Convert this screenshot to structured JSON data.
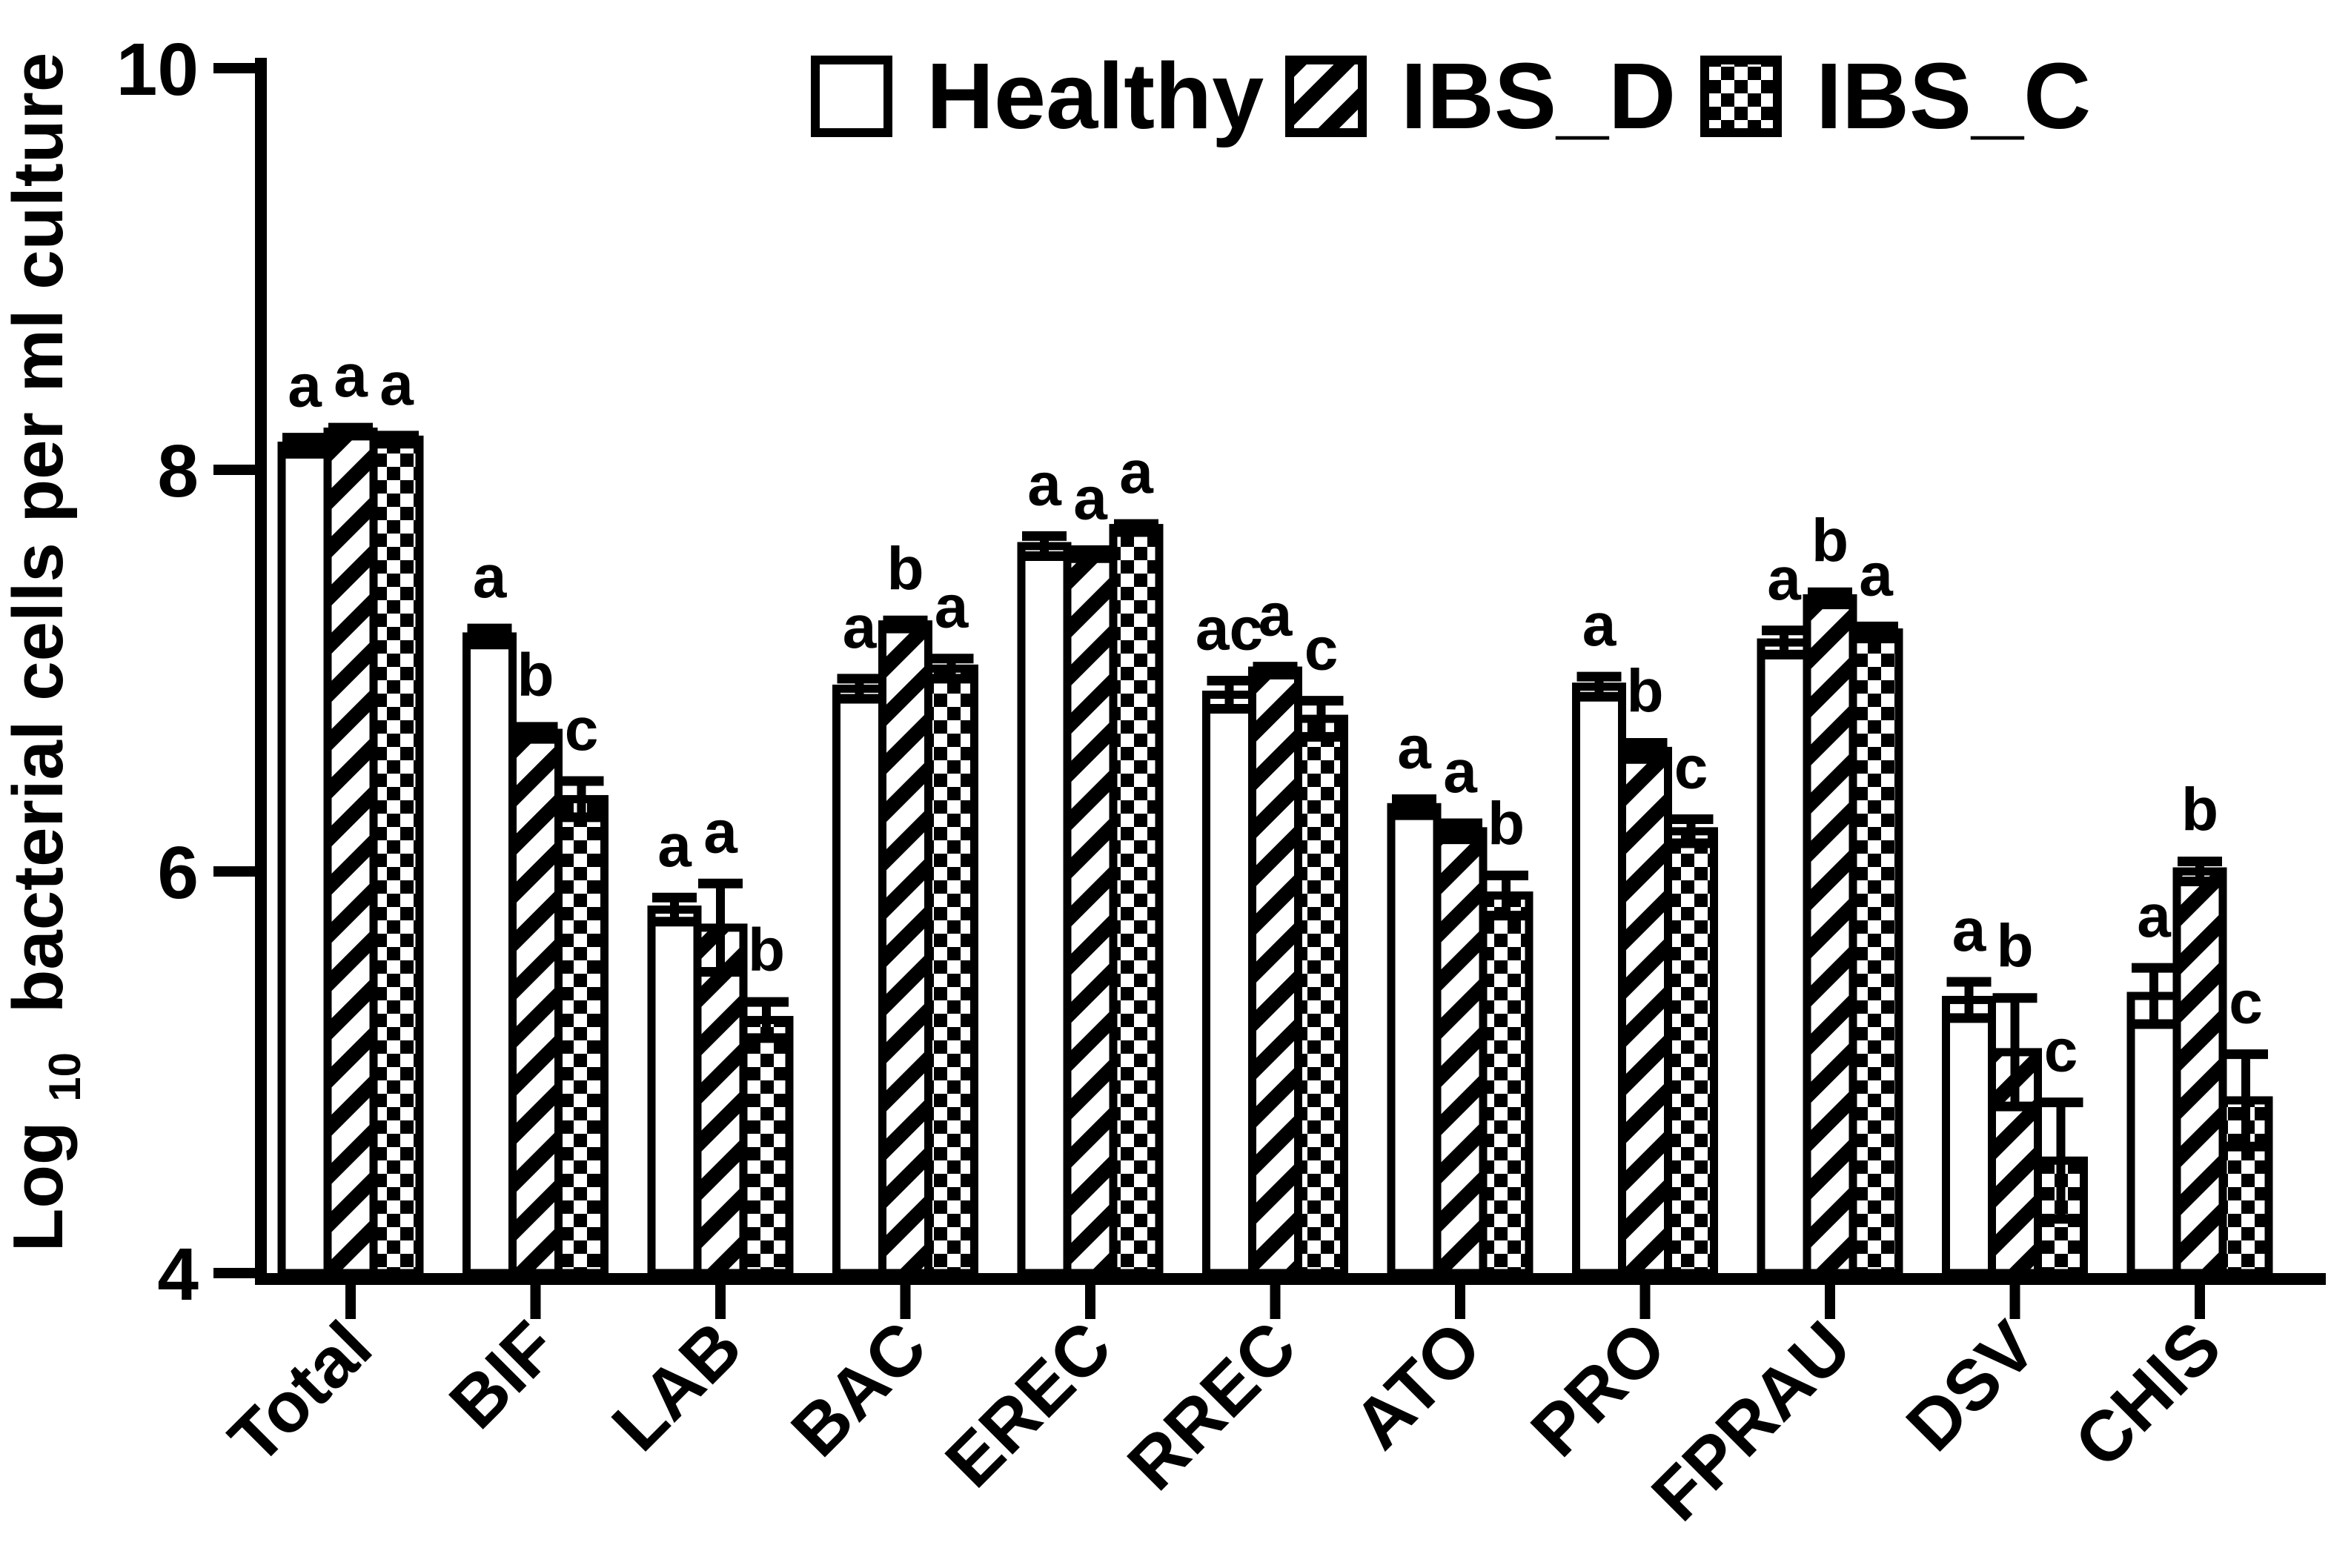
{
  "figure": {
    "background": "#ffffff",
    "ink": "#000000"
  },
  "legend": {
    "items": [
      {
        "label": "Healthy",
        "pattern": "solid-white"
      },
      {
        "label": "IBS_D",
        "pattern": "diagonal-hatch"
      },
      {
        "label": "IBS_C",
        "pattern": "checkerboard"
      }
    ]
  },
  "y_axis": {
    "title_prefix": "Log",
    "title_subscript": "10",
    "title_suffix": "bacterial cells per ml culture",
    "tick_labels": [
      "10",
      "8",
      "6",
      "4"
    ],
    "tick_values": [
      10,
      8,
      6,
      4
    ],
    "min": 4,
    "max": 10
  },
  "chart_data": {
    "type": "bar",
    "title": "",
    "xlabel": "",
    "ylabel": "Log10 bacterial cells per ml culture",
    "ylim": [
      4,
      10
    ],
    "grid": false,
    "legend_position": "top-center",
    "error_bars": true,
    "categories": [
      "Total",
      "BIF",
      "LAB",
      "BAC",
      "EREC",
      "RREC",
      "ATO",
      "PRO",
      "FPRAU",
      "DSV",
      "CHIS"
    ],
    "series": [
      {
        "name": "Healthy",
        "pattern": "solid-white",
        "values": [
          8.12,
          7.17,
          5.81,
          6.91,
          7.62,
          6.88,
          6.32,
          6.92,
          7.14,
          5.36,
          5.38
        ],
        "errors": [
          0.04,
          0.04,
          0.06,
          0.05,
          0.05,
          0.07,
          0.04,
          0.05,
          0.06,
          0.09,
          0.14
        ],
        "sig_labels": [
          "a",
          "a",
          "a",
          "a",
          "a",
          "ac",
          "a",
          "a",
          "a",
          "a",
          "a"
        ]
      },
      {
        "name": "IBS_D",
        "pattern": "diagonal-hatch",
        "values": [
          8.19,
          6.69,
          5.72,
          7.23,
          7.58,
          7.0,
          6.2,
          6.6,
          7.36,
          5.1,
          6.0
        ],
        "errors": [
          0.02,
          0.03,
          0.22,
          0.02,
          0.02,
          0.02,
          0.04,
          0.04,
          0.03,
          0.27,
          0.05
        ],
        "sig_labels": [
          "a",
          "b",
          "a",
          "b",
          "a",
          "a",
          "a",
          "b",
          "b",
          "b",
          "b"
        ]
      },
      {
        "name": "IBS_C",
        "pattern": "checkerboard",
        "values": [
          8.15,
          6.36,
          5.26,
          7.01,
          7.71,
          6.76,
          5.88,
          6.2,
          7.19,
          4.56,
          4.86
        ],
        "errors": [
          0.02,
          0.09,
          0.09,
          0.05,
          0.02,
          0.09,
          0.1,
          0.06,
          0.03,
          0.29,
          0.23
        ],
        "sig_labels": [
          "a",
          "c",
          "b",
          "a",
          "a",
          "c",
          "b",
          "c",
          "a",
          "c",
          "c"
        ]
      }
    ]
  }
}
